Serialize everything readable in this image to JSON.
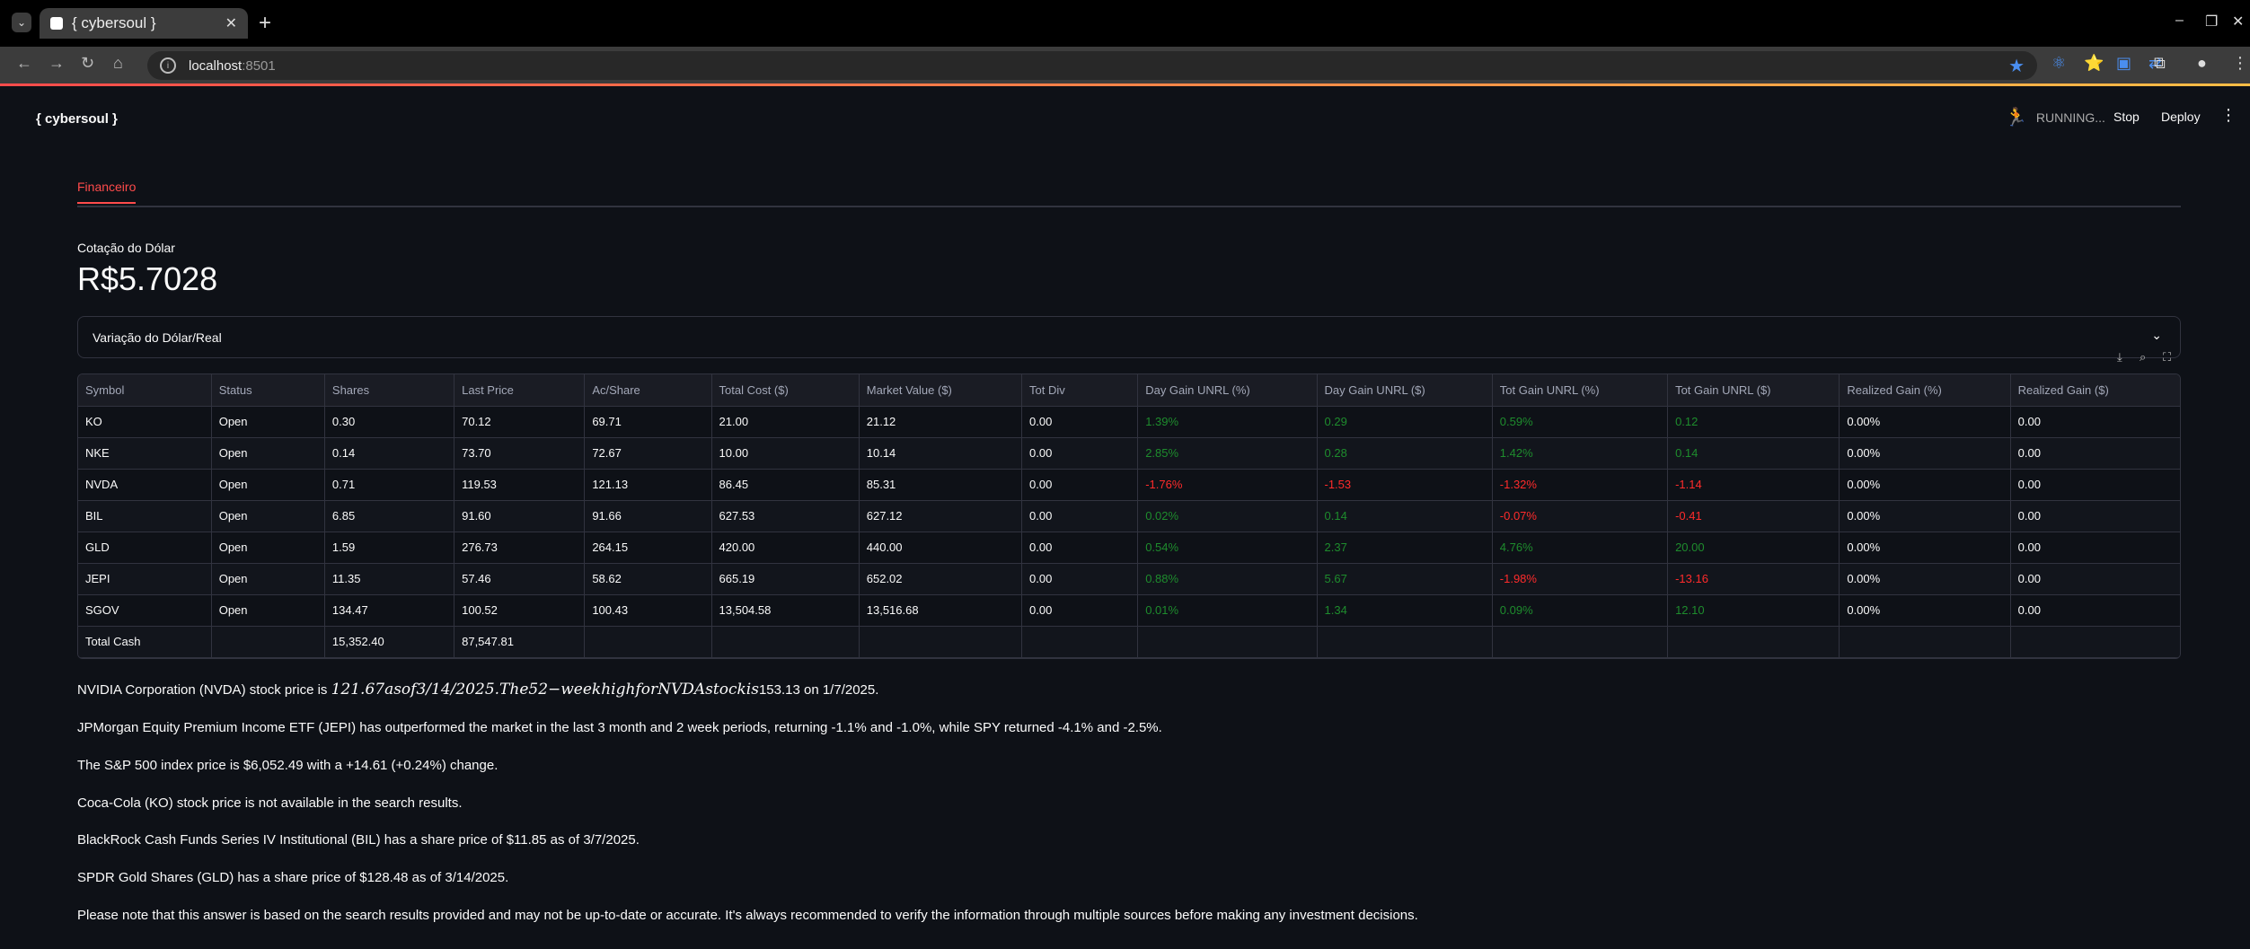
{
  "browser": {
    "tab_title": "{ cybersoul }",
    "url_host": "localhost",
    "url_port": ":8501"
  },
  "app": {
    "brand": "{ cybersoul }",
    "status": "RUNNING...",
    "stop_label": "Stop",
    "deploy_label": "Deploy"
  },
  "tabs": [
    {
      "label": "Financeiro"
    }
  ],
  "metric": {
    "label": "Cotação do Dólar",
    "value": "R$5.7028"
  },
  "expander": {
    "label": "Variação do Dólar/Real"
  },
  "table": {
    "columns": [
      "Symbol",
      "Status",
      "Shares",
      "Last Price",
      "Ac/Share",
      "Total Cost ($)",
      "Market Value ($)",
      "Tot Div",
      "Day Gain UNRL (%)",
      "Day Gain UNRL ($)",
      "Tot Gain UNRL (%)",
      "Tot Gain UNRL ($)",
      "Realized Gain (%)",
      "Realized Gain ($)"
    ],
    "rows": [
      [
        "KO",
        "Open",
        "0.30",
        "70.12",
        "69.71",
        "21.00",
        "21.12",
        "0.00",
        "1.39%",
        "0.29",
        "0.59%",
        "0.12",
        "0.00%",
        "0.00"
      ],
      [
        "NKE",
        "Open",
        "0.14",
        "73.70",
        "72.67",
        "10.00",
        "10.14",
        "0.00",
        "2.85%",
        "0.28",
        "1.42%",
        "0.14",
        "0.00%",
        "0.00"
      ],
      [
        "NVDA",
        "Open",
        "0.71",
        "119.53",
        "121.13",
        "86.45",
        "85.31",
        "0.00",
        "-1.76%",
        "-1.53",
        "-1.32%",
        "-1.14",
        "0.00%",
        "0.00"
      ],
      [
        "BIL",
        "Open",
        "6.85",
        "91.60",
        "91.66",
        "627.53",
        "627.12",
        "0.00",
        "0.02%",
        "0.14",
        "-0.07%",
        "-0.41",
        "0.00%",
        "0.00"
      ],
      [
        "GLD",
        "Open",
        "1.59",
        "276.73",
        "264.15",
        "420.00",
        "440.00",
        "0.00",
        "0.54%",
        "2.37",
        "4.76%",
        "20.00",
        "0.00%",
        "0.00"
      ],
      [
        "JEPI",
        "Open",
        "11.35",
        "57.46",
        "58.62",
        "665.19",
        "652.02",
        "0.00",
        "0.88%",
        "5.67",
        "-1.98%",
        "-13.16",
        "0.00%",
        "0.00"
      ],
      [
        "SGOV",
        "Open",
        "134.47",
        "100.52",
        "100.43",
        "13,504.58",
        "13,516.68",
        "0.00",
        "0.01%",
        "1.34",
        "0.09%",
        "12.10",
        "0.00%",
        "0.00"
      ],
      [
        "Total Cash",
        "",
        "15,352.40",
        "87,547.81",
        "",
        "",
        "",
        "",
        "",
        "",
        "",
        "",
        "",
        ""
      ]
    ],
    "colors": {
      "positive": "#1e8c2d",
      "negative": "#ff2b2b"
    }
  },
  "answer": {
    "nvda_prefix": "NVIDIA Corporation (NVDA) stock price is ",
    "nvda_math": "121.67asof3/14/2025.The52−weekhighforNVDAstockis",
    "nvda_suffix": "153.13 on 1/7/2025.",
    "jepi": "JPMorgan Equity Premium Income ETF (JEPI) has outperformed the market in the last 3 month and 2 week periods, returning -1.1% and -1.0%, while SPY returned -4.1% and -2.5%.",
    "sp500": "The S&P 500 index price is $6,052.49 with a +14.61 (+0.24%) change.",
    "ko": "Coca-Cola (KO) stock price is not available in the search results.",
    "bil": "BlackRock Cash Funds Series IV Institutional (BIL) has a share price of $11.85 as of 3/7/2025.",
    "gld": "SPDR Gold Shares (GLD) has a share price of $128.48 as of 3/14/2025.",
    "disclaimer": "Please note that this answer is based on the search results provided and may not be up-to-date or accurate. It's always recommended to verify the information through multiple sources before making any investment decisions."
  }
}
